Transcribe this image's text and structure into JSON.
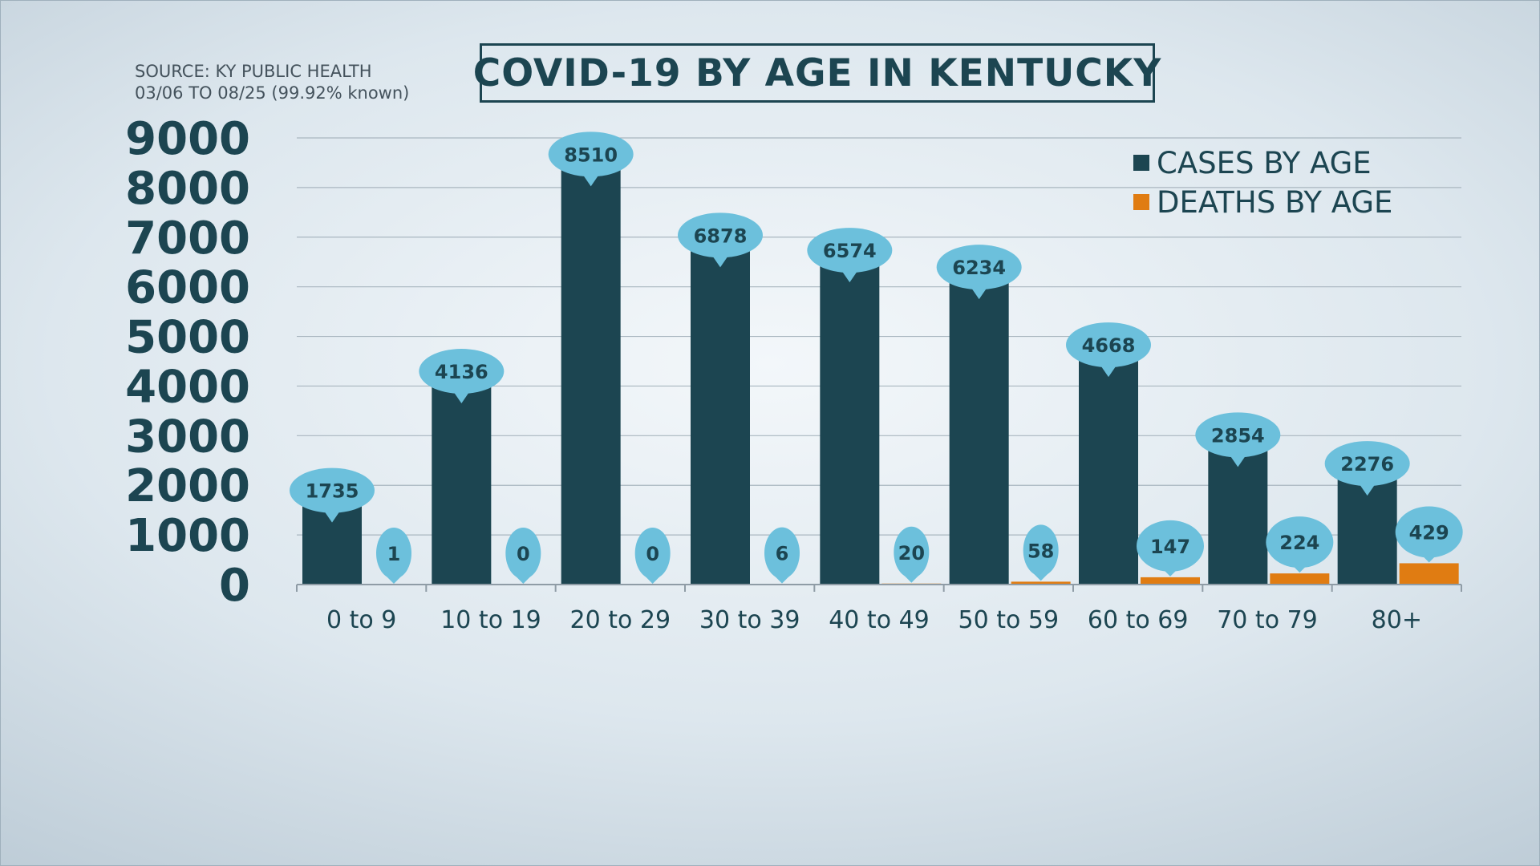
{
  "header": {
    "source_line1": "SOURCE: KY PUBLIC HEALTH",
    "source_line2": "03/06 TO 08/25 (99.92% known)"
  },
  "chart_data": {
    "type": "bar",
    "title": "COVID-19 BY AGE IN KENTUCKY",
    "categories": [
      "0 to 9",
      "10 to 19",
      "20 to 29",
      "30 to 39",
      "40 to 49",
      "50 to 59",
      "60 to 69",
      "70 to 79",
      "80+"
    ],
    "series": [
      {
        "name": "CASES BY AGE",
        "color": "#1c4551",
        "values": [
          1735,
          4136,
          8510,
          6878,
          6574,
          6234,
          4668,
          2854,
          2276
        ]
      },
      {
        "name": "DEATHS BY AGE",
        "color": "#e07c12",
        "values": [
          1,
          0,
          0,
          6,
          20,
          58,
          147,
          224,
          429
        ]
      }
    ],
    "yticks": [
      "0",
      "1000",
      "2000",
      "3000",
      "4000",
      "5000",
      "6000",
      "7000",
      "8000",
      "9000"
    ],
    "ylim": [
      0,
      9000
    ],
    "grid": true,
    "legend_position": "top-right",
    "callout_color": "#6cc0dc"
  }
}
